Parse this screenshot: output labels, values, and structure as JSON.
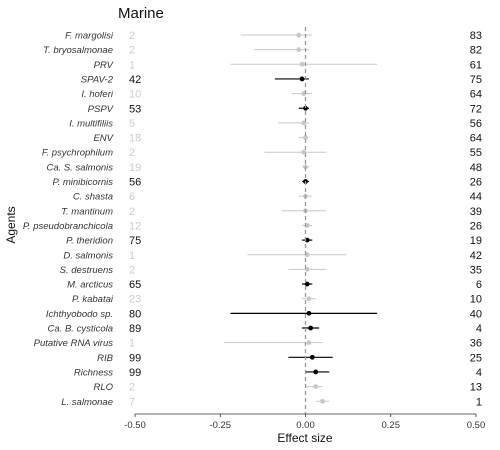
{
  "chart_data": {
    "type": "forest",
    "title": "Marine",
    "xlabel": "Effect size",
    "ylabel": "Agents",
    "xlim": [
      -0.5,
      0.5
    ],
    "x_ticks": [
      -0.5,
      -0.25,
      0,
      0.25,
      0.5
    ],
    "x_tick_labels": [
      "-0.50",
      "-0.25",
      "0.00",
      "0.25",
      "0.50"
    ],
    "reference_line": 0,
    "grid": false,
    "colors": {
      "significant": "#000000",
      "faded": "#c8c8c8",
      "reference": "#999999"
    },
    "rows": [
      {
        "agent": "F. margolisi",
        "count": 2,
        "prevalence": 83,
        "estimate": -0.02,
        "lower": -0.19,
        "upper": 0.02
      },
      {
        "agent": "T. bryosalmonae",
        "count": 2,
        "prevalence": 82,
        "estimate": -0.02,
        "lower": -0.15,
        "upper": 0.01
      },
      {
        "agent": "PRV",
        "count": 1,
        "prevalence": 61,
        "estimate": -0.01,
        "lower": -0.22,
        "upper": 0.21
      },
      {
        "agent": "SPAV-2",
        "count": 42,
        "prevalence": 75,
        "estimate": -0.01,
        "lower": -0.09,
        "upper": 0.01
      },
      {
        "agent": "I. hoferi",
        "count": 10,
        "prevalence": 64,
        "estimate": -0.005,
        "lower": -0.04,
        "upper": 0.02
      },
      {
        "agent": "PSPV",
        "count": 53,
        "prevalence": 72,
        "estimate": 0.0,
        "lower": -0.02,
        "upper": 0.01
      },
      {
        "agent": "I. multifiliis",
        "count": 5,
        "prevalence": 56,
        "estimate": -0.005,
        "lower": -0.08,
        "upper": 0.01
      },
      {
        "agent": "ENV",
        "count": 18,
        "prevalence": 64,
        "estimate": 0.0,
        "lower": -0.02,
        "upper": 0.01
      },
      {
        "agent": "F. psychrophilum",
        "count": 2,
        "prevalence": 55,
        "estimate": -0.005,
        "lower": -0.12,
        "upper": 0.06
      },
      {
        "agent": "Ca. S. salmonis",
        "count": 19,
        "prevalence": 48,
        "estimate": 0.0,
        "lower": -0.01,
        "upper": 0.01
      },
      {
        "agent": "P. minibicornis",
        "count": 56,
        "prevalence": 26,
        "estimate": 0.0,
        "lower": -0.01,
        "upper": 0.01
      },
      {
        "agent": "C. shasta",
        "count": 6,
        "prevalence": 44,
        "estimate": 0.0,
        "lower": -0.02,
        "upper": 0.02
      },
      {
        "agent": "T. mantinum",
        "count": 2,
        "prevalence": 39,
        "estimate": 0.0,
        "lower": -0.07,
        "upper": 0.06
      },
      {
        "agent": "P. pseudobranchicola",
        "count": 12,
        "prevalence": 26,
        "estimate": 0.005,
        "lower": -0.01,
        "upper": 0.02
      },
      {
        "agent": "P. theridion",
        "count": 75,
        "prevalence": 19,
        "estimate": 0.005,
        "lower": -0.01,
        "upper": 0.02
      },
      {
        "agent": "D. salmonis",
        "count": 1,
        "prevalence": 42,
        "estimate": 0.005,
        "lower": -0.17,
        "upper": 0.12
      },
      {
        "agent": "S. destruens",
        "count": 2,
        "prevalence": 35,
        "estimate": 0.005,
        "lower": -0.05,
        "upper": 0.06
      },
      {
        "agent": "M. arcticus",
        "count": 65,
        "prevalence": 6,
        "estimate": 0.005,
        "lower": -0.01,
        "upper": 0.02
      },
      {
        "agent": "P. kabatai",
        "count": 23,
        "prevalence": 10,
        "estimate": 0.01,
        "lower": -0.01,
        "upper": 0.03
      },
      {
        "agent": "Ichthyobodo sp.",
        "count": 80,
        "prevalence": 40,
        "estimate": 0.01,
        "lower": -0.22,
        "upper": 0.21
      },
      {
        "agent": "Ca. B. cysticola",
        "count": 89,
        "prevalence": 4,
        "estimate": 0.015,
        "lower": -0.01,
        "upper": 0.04
      },
      {
        "agent": "Putative RNA virus",
        "count": 1,
        "prevalence": 36,
        "estimate": 0.01,
        "lower": -0.24,
        "upper": 0.05
      },
      {
        "agent": "RIB",
        "count": 99,
        "prevalence": 25,
        "estimate": 0.02,
        "lower": -0.05,
        "upper": 0.08
      },
      {
        "agent": "Richness",
        "count": 99,
        "prevalence": 4,
        "estimate": 0.03,
        "lower": 0.0,
        "upper": 0.07
      },
      {
        "agent": "RLO",
        "count": 2,
        "prevalence": 13,
        "estimate": 0.03,
        "lower": 0.0,
        "upper": 0.05
      },
      {
        "agent": "L. salmonae",
        "count": 7,
        "prevalence": 1,
        "estimate": 0.05,
        "lower": 0.03,
        "upper": 0.07
      }
    ]
  }
}
